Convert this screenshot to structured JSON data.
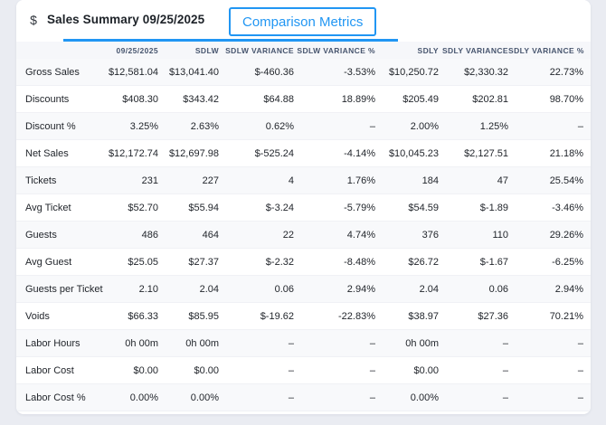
{
  "header": {
    "dollar_icon": "$",
    "title": "Sales Summary 09/25/2025",
    "button_label": "Comparison Metrics"
  },
  "colors": {
    "accent_blue": "#2196f3",
    "page_background": "#eaecf2",
    "card_background": "#ffffff",
    "header_text": "#47556e",
    "body_text": "#22262c",
    "row_stripe": "#f8f9fb"
  },
  "table": {
    "columns": [
      "09/25/2025",
      "SDLW",
      "SDLW VARIANCE",
      "SDLW VARIANCE %",
      "SDLY",
      "SDLY VARIANCE",
      "SDLY VARIANCE %"
    ],
    "rows": [
      {
        "label": "Gross Sales",
        "values": [
          "$12,581.04",
          "$13,041.40",
          "$-460.36",
          "-3.53%",
          "$10,250.72",
          "$2,330.32",
          "22.73%"
        ]
      },
      {
        "label": "Discounts",
        "values": [
          "$408.30",
          "$343.42",
          "$64.88",
          "18.89%",
          "$205.49",
          "$202.81",
          "98.70%"
        ]
      },
      {
        "label": "Discount %",
        "values": [
          "3.25%",
          "2.63%",
          "0.62%",
          "–",
          "2.00%",
          "1.25%",
          "–"
        ]
      },
      {
        "label": "Net Sales",
        "values": [
          "$12,172.74",
          "$12,697.98",
          "$-525.24",
          "-4.14%",
          "$10,045.23",
          "$2,127.51",
          "21.18%"
        ]
      },
      {
        "label": "Tickets",
        "values": [
          "231",
          "227",
          "4",
          "1.76%",
          "184",
          "47",
          "25.54%"
        ]
      },
      {
        "label": "Avg Ticket",
        "values": [
          "$52.70",
          "$55.94",
          "$-3.24",
          "-5.79%",
          "$54.59",
          "$-1.89",
          "-3.46%"
        ]
      },
      {
        "label": "Guests",
        "values": [
          "486",
          "464",
          "22",
          "4.74%",
          "376",
          "110",
          "29.26%"
        ]
      },
      {
        "label": "Avg Guest",
        "values": [
          "$25.05",
          "$27.37",
          "$-2.32",
          "-8.48%",
          "$26.72",
          "$-1.67",
          "-6.25%"
        ]
      },
      {
        "label": "Guests per Ticket",
        "values": [
          "2.10",
          "2.04",
          "0.06",
          "2.94%",
          "2.04",
          "0.06",
          "2.94%"
        ]
      },
      {
        "label": "Voids",
        "values": [
          "$66.33",
          "$85.95",
          "$-19.62",
          "-22.83%",
          "$38.97",
          "$27.36",
          "70.21%"
        ]
      },
      {
        "label": "Labor Hours",
        "values": [
          "0h 00m",
          "0h 00m",
          "–",
          "–",
          "0h 00m",
          "–",
          "–"
        ]
      },
      {
        "label": "Labor Cost",
        "values": [
          "$0.00",
          "$0.00",
          "–",
          "–",
          "$0.00",
          "–",
          "–"
        ]
      },
      {
        "label": "Labor Cost %",
        "values": [
          "0.00%",
          "0.00%",
          "–",
          "–",
          "0.00%",
          "–",
          "–"
        ]
      }
    ]
  }
}
